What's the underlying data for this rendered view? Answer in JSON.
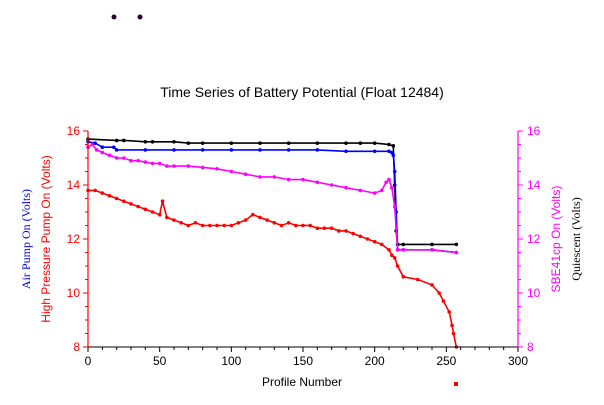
{
  "colors": {
    "background": "#ffffff",
    "axis": "#000000",
    "left_axis": "#ff0000",
    "right_axis": "#ff00ff",
    "quiescent": "#000000",
    "air_pump": "#0000ff",
    "high_pressure_pump": "#ff0000",
    "sbe41cp": "#ff00ff",
    "marker_dot": "#330033"
  },
  "chart_data": {
    "type": "line",
    "title": "Time Series of Battery Potential (Float 12484)",
    "xlabel": "Profile Number",
    "ylabel_left_1": "Air Pump On (Volts)",
    "ylabel_left_2": "High Pressure Pump On (Volts)",
    "ylabel_right_1": "SBE41cp On (Volts)",
    "ylabel_right_2": "Quiescent (Volts)",
    "xlim": [
      0,
      300
    ],
    "ylim": [
      8,
      16
    ],
    "x_ticks": [
      0,
      50,
      100,
      150,
      200,
      250,
      300
    ],
    "y_ticks_left": [
      8,
      10,
      12,
      14,
      16
    ],
    "y_ticks_right": [
      8,
      10,
      12,
      14,
      16
    ],
    "grid": false,
    "legend": "none",
    "series": [
      {
        "key": "quiescent",
        "color": "#000000",
        "marker": "dot",
        "x": [
          0,
          20,
          25,
          40,
          45,
          60,
          70,
          80,
          100,
          120,
          140,
          160,
          180,
          190,
          200,
          210,
          213,
          214,
          215,
          216,
          220,
          240,
          257
        ],
        "y": [
          15.7,
          15.65,
          15.65,
          15.6,
          15.6,
          15.6,
          15.55,
          15.55,
          15.55,
          15.55,
          15.55,
          15.55,
          15.55,
          15.55,
          15.55,
          15.5,
          15.45,
          14.0,
          12.3,
          11.8,
          11.8,
          11.8,
          11.8
        ]
      },
      {
        "key": "air_pump",
        "color": "#0000ff",
        "marker": "dot",
        "x": [
          0,
          5,
          10,
          18,
          20,
          40,
          60,
          80,
          100,
          120,
          140,
          160,
          180,
          200,
          210,
          212,
          213,
          214,
          215,
          216,
          220,
          240,
          257
        ],
        "y": [
          15.6,
          15.55,
          15.4,
          15.4,
          15.3,
          15.3,
          15.3,
          15.3,
          15.3,
          15.3,
          15.3,
          15.3,
          15.25,
          15.25,
          15.25,
          15.2,
          15.1,
          14.5,
          13.0,
          11.6,
          11.6,
          11.6,
          11.5
        ]
      },
      {
        "key": "sbe41cp",
        "color": "#ff00ff",
        "marker": "dot",
        "x": [
          0,
          3,
          6,
          10,
          15,
          20,
          25,
          30,
          35,
          40,
          45,
          50,
          55,
          60,
          70,
          80,
          90,
          100,
          110,
          120,
          130,
          140,
          150,
          160,
          170,
          180,
          190,
          200,
          205,
          208,
          210,
          212,
          214,
          216,
          220,
          240,
          257
        ],
        "y": [
          15.4,
          15.5,
          15.3,
          15.2,
          15.1,
          15.0,
          15.0,
          14.9,
          14.9,
          14.85,
          14.8,
          14.8,
          14.7,
          14.7,
          14.7,
          14.65,
          14.6,
          14.5,
          14.4,
          14.3,
          14.3,
          14.2,
          14.2,
          14.1,
          14.0,
          13.9,
          13.8,
          13.7,
          13.8,
          14.1,
          14.2,
          13.9,
          13.2,
          11.6,
          11.6,
          11.6,
          11.5
        ]
      },
      {
        "key": "high_pressure_pump",
        "color": "#ff0000",
        "marker": "dot",
        "x": [
          0,
          5,
          10,
          15,
          20,
          25,
          30,
          35,
          40,
          45,
          50,
          52,
          55,
          60,
          65,
          70,
          75,
          80,
          85,
          90,
          95,
          100,
          105,
          110,
          115,
          120,
          125,
          130,
          135,
          140,
          145,
          150,
          155,
          160,
          165,
          170,
          175,
          180,
          185,
          190,
          195,
          200,
          205,
          210,
          212,
          214,
          216,
          220,
          230,
          240,
          245,
          248,
          252,
          254,
          255,
          257
        ],
        "y": [
          13.8,
          13.8,
          13.7,
          13.6,
          13.5,
          13.4,
          13.3,
          13.2,
          13.1,
          13.0,
          12.9,
          13.4,
          12.8,
          12.7,
          12.6,
          12.5,
          12.6,
          12.5,
          12.5,
          12.5,
          12.5,
          12.5,
          12.6,
          12.7,
          12.9,
          12.8,
          12.7,
          12.6,
          12.5,
          12.6,
          12.5,
          12.5,
          12.5,
          12.4,
          12.4,
          12.4,
          12.3,
          12.3,
          12.2,
          12.1,
          12.0,
          11.9,
          11.8,
          11.6,
          11.4,
          11.3,
          11.0,
          10.6,
          10.5,
          10.3,
          10.0,
          9.7,
          9.3,
          8.8,
          8.5,
          8.0
        ]
      }
    ]
  }
}
